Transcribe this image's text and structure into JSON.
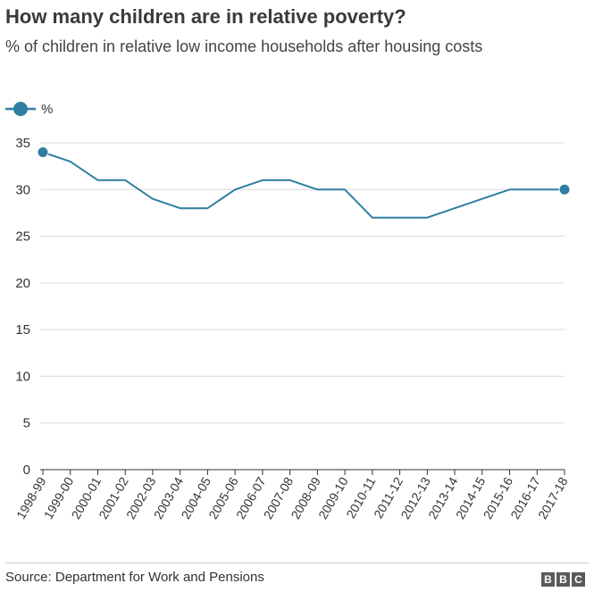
{
  "title": "How many children are in relative poverty?",
  "subtitle": "% of children in relative low income households after housing costs",
  "legend_label": "%",
  "source": "Source: Department for Work and Pensions",
  "logo_letters": [
    "B",
    "B",
    "C"
  ],
  "colors": {
    "line": "#2e7fa1",
    "marker": "#2e7fa1",
    "grid": "#d9d9d9",
    "axis": "#333333"
  },
  "chart_data": {
    "type": "line",
    "categories": [
      "1998-99",
      "1999-00",
      "2000-01",
      "2001-02",
      "2002-03",
      "2003-04",
      "2004-05",
      "2005-06",
      "2006-07",
      "2007-08",
      "2008-09",
      "2009-10",
      "2010-11",
      "2011-12",
      "2012-13",
      "2013-14",
      "2014-15",
      "2015-16",
      "2016-17",
      "2017-18"
    ],
    "series": [
      {
        "name": "%",
        "values": [
          34,
          33,
          31,
          31,
          29,
          28,
          28,
          30,
          31,
          31,
          30,
          30,
          27,
          27,
          27,
          28,
          29,
          30,
          30,
          30
        ]
      }
    ],
    "yticks": [
      0,
      5,
      10,
      15,
      20,
      25,
      30,
      35
    ],
    "ylim": [
      0,
      35
    ],
    "grid": true,
    "legend": "top-left",
    "markers_at": "first-and-last"
  }
}
